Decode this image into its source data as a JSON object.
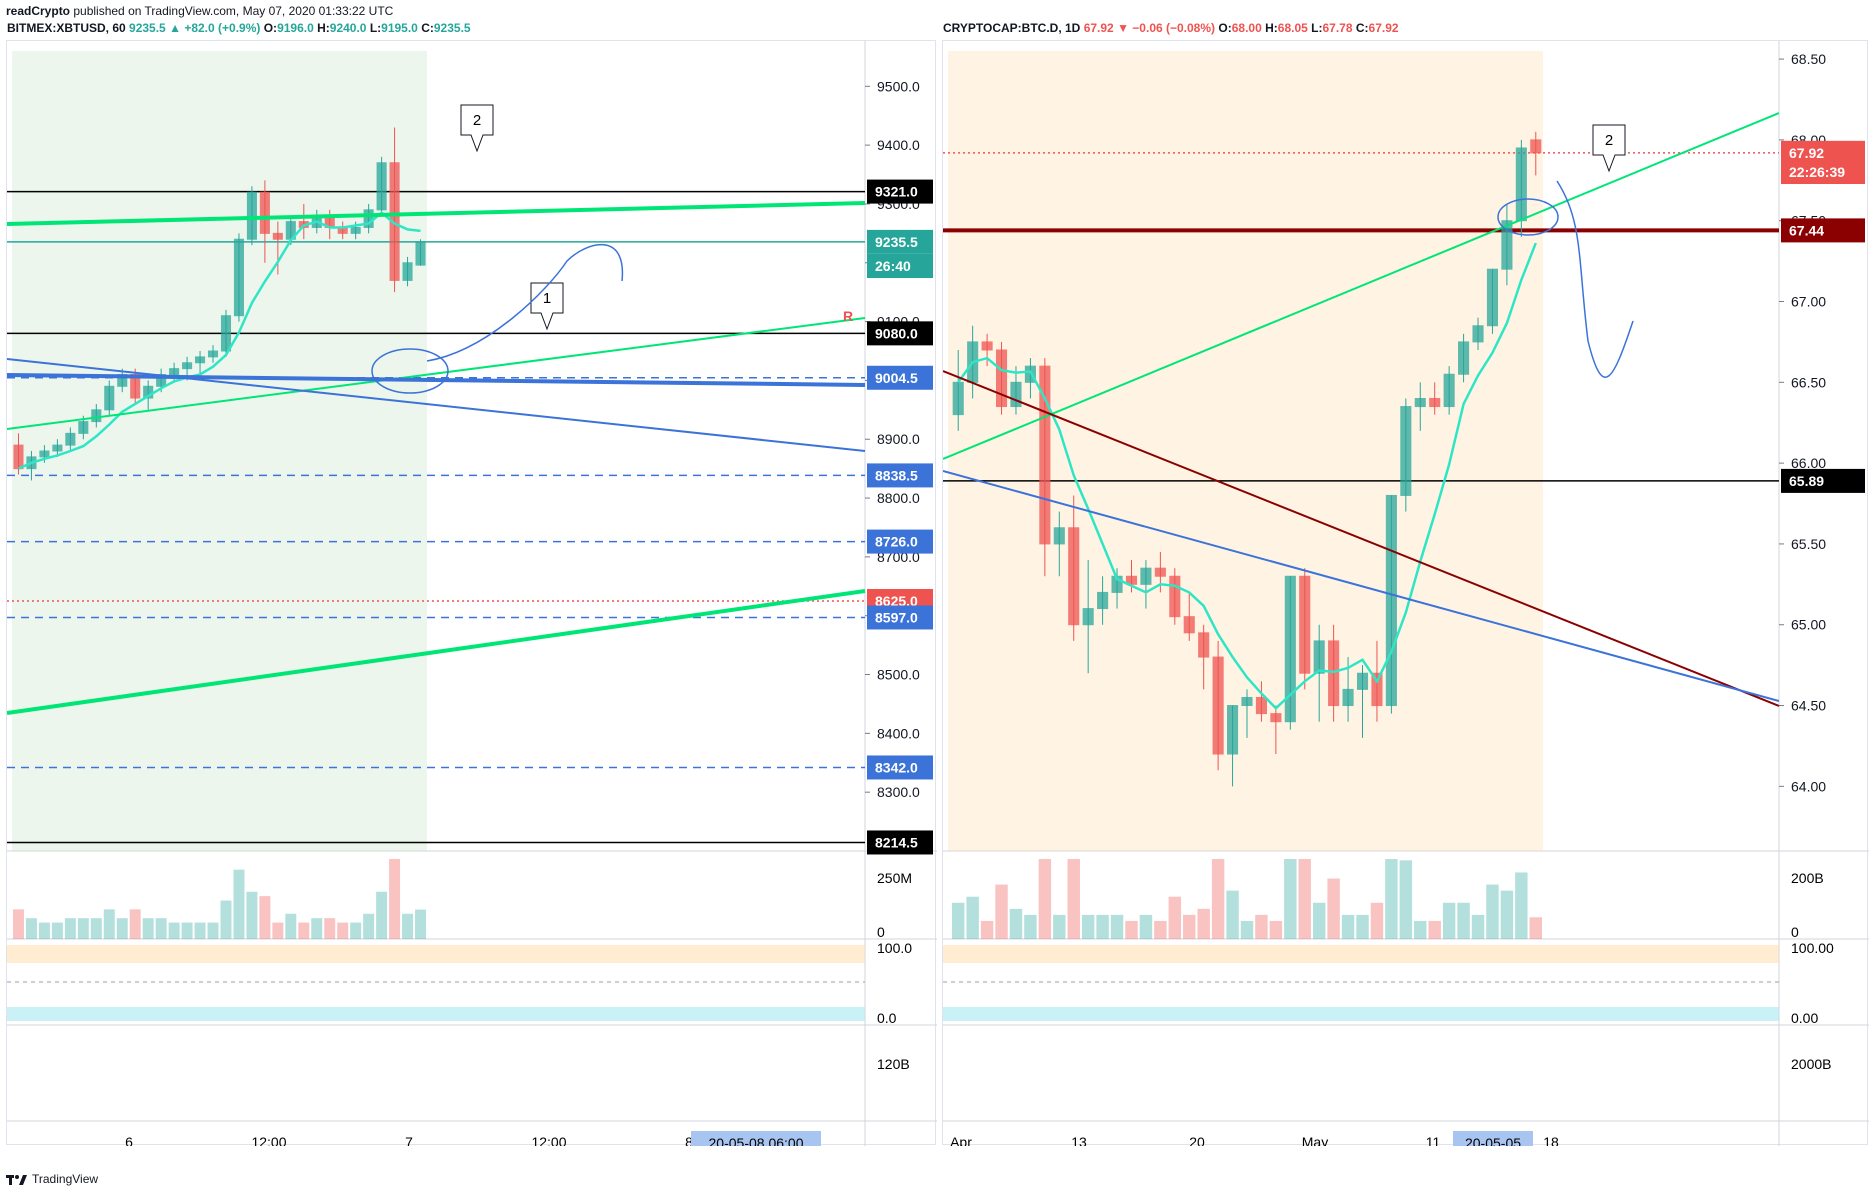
{
  "header": {
    "user": "readCrypto",
    "published": "published on TradingView.com, May 07, 2020 01:33:22 UTC"
  },
  "footer": {
    "brand": "TradingView"
  },
  "colors": {
    "up": "#26a69a",
    "down": "#ef5350",
    "green_line": "#00e676",
    "blue_line": "#3b73d9",
    "dark_red": "#8b0000"
  },
  "charts": {
    "left": {
      "legend": {
        "symbol": "BITMEX:XBTUSD, 60",
        "last": "9235.5",
        "change": "+82.0 (+0.9%)",
        "o_label": "O:",
        "o": "9196.0",
        "h_label": "H:",
        "h": "9240.0",
        "l_label": "L:",
        "l": "9195.0",
        "c_label": "C:",
        "c": "9235.5"
      },
      "y_ticks": [
        "9500.0",
        "9400.0",
        "9300.0",
        "9200.0",
        "9100.0",
        "9000.0",
        "8900.0",
        "8800.0",
        "8700.0",
        "8600.0",
        "8500.0",
        "8400.0",
        "8300.0"
      ],
      "price_badges": [
        {
          "text": "9321.0",
          "style": "black"
        },
        {
          "text": "9235.5",
          "style": "teal"
        },
        {
          "text": "26:40",
          "style": "teal"
        },
        {
          "text": "9080.0",
          "style": "black"
        },
        {
          "text": "9004.5",
          "style": "blue"
        },
        {
          "text": "8838.5",
          "style": "blue"
        },
        {
          "text": "8726.0",
          "style": "blue"
        },
        {
          "text": "8625.0",
          "style": "red"
        },
        {
          "text": "8597.0",
          "style": "blue"
        },
        {
          "text": "8342.0",
          "style": "blue"
        },
        {
          "text": "8214.5",
          "style": "black"
        }
      ],
      "x_ticks": [
        "6",
        "12:00",
        "7",
        "12:00",
        "8"
      ],
      "x_badge": "20-05-08  06:00",
      "x_tail": ":00",
      "volume_ticks": [
        "250M",
        "0"
      ],
      "osc_ticks": [
        "100.0",
        "0.0"
      ],
      "obv_ticks": [
        "120B"
      ],
      "annotations": [
        "1",
        "2"
      ],
      "marker_r": "R"
    },
    "right": {
      "legend": {
        "symbol": "CRYPTOCAP:BTC.D, 1D",
        "last": "67.92",
        "change": "−0.06 (−0.08%)",
        "o_label": "O:",
        "o": "68.00",
        "h_label": "H:",
        "h": "68.05",
        "l_label": "L:",
        "l": "67.78",
        "c_label": "C:",
        "c": "67.92"
      },
      "y_ticks": [
        "68.50",
        "68.00",
        "67.50",
        "67.00",
        "66.50",
        "66.00",
        "65.50",
        "65.00",
        "64.50",
        "64.00"
      ],
      "price_badges": [
        {
          "text": "67.92",
          "style": "red"
        },
        {
          "text": "22:26:39",
          "style": "red"
        },
        {
          "text": "67.44",
          "style": "darkred"
        },
        {
          "text": "65.89",
          "style": "black"
        }
      ],
      "x_ticks": [
        "Apr",
        "13",
        "20",
        "May",
        "11",
        "18"
      ],
      "x_badge": "20-05-05",
      "volume_ticks": [
        "200B",
        "0"
      ],
      "osc_ticks": [
        "100.00",
        "0.00"
      ],
      "obv_ticks": [
        "2000B"
      ],
      "annotations": [
        "2"
      ]
    }
  },
  "chart_data": [
    {
      "type": "candlestick",
      "title": "BITMEX:XBTUSD, 60",
      "ylim": [
        8200,
        9560
      ],
      "ohlc": [
        [
          8890,
          8910,
          8840,
          8850
        ],
        [
          8850,
          8880,
          8830,
          8870
        ],
        [
          8870,
          8890,
          8860,
          8880
        ],
        [
          8880,
          8900,
          8870,
          8890
        ],
        [
          8890,
          8920,
          8880,
          8910
        ],
        [
          8910,
          8940,
          8900,
          8930
        ],
        [
          8930,
          8960,
          8920,
          8950
        ],
        [
          8950,
          9000,
          8940,
          8990
        ],
        [
          8990,
          9020,
          8980,
          9010
        ],
        [
          9010,
          9020,
          8960,
          8970
        ],
        [
          8970,
          9000,
          8950,
          8990
        ],
        [
          8990,
          9020,
          8980,
          9010
        ],
        [
          9010,
          9030,
          9000,
          9020
        ],
        [
          9020,
          9040,
          9000,
          9030
        ],
        [
          9030,
          9050,
          9010,
          9040
        ],
        [
          9040,
          9060,
          9030,
          9050
        ],
        [
          9050,
          9120,
          9040,
          9110
        ],
        [
          9110,
          9250,
          9100,
          9240
        ],
        [
          9240,
          9330,
          9230,
          9320
        ],
        [
          9320,
          9340,
          9200,
          9250
        ],
        [
          9250,
          9270,
          9180,
          9240
        ],
        [
          9240,
          9280,
          9230,
          9270
        ],
        [
          9270,
          9300,
          9240,
          9260
        ],
        [
          9260,
          9290,
          9250,
          9280
        ],
        [
          9280,
          9290,
          9240,
          9260
        ],
        [
          9260,
          9270,
          9240,
          9250
        ],
        [
          9250,
          9270,
          9240,
          9260
        ],
        [
          9260,
          9300,
          9250,
          9290
        ],
        [
          9290,
          9380,
          9280,
          9370
        ],
        [
          9370,
          9430,
          9150,
          9170
        ],
        [
          9170,
          9210,
          9160,
          9200
        ],
        [
          9196,
          9240,
          9195,
          9235.5
        ]
      ]
    },
    {
      "type": "candlestick",
      "title": "CRYPTOCAP:BTC.D, 1D",
      "ylim": [
        63.6,
        68.55
      ],
      "ohlc": [
        [
          66.3,
          66.7,
          66.2,
          66.5
        ],
        [
          66.5,
          66.85,
          66.4,
          66.75
        ],
        [
          66.75,
          66.8,
          66.6,
          66.7
        ],
        [
          66.7,
          66.75,
          66.3,
          66.35
        ],
        [
          66.35,
          66.6,
          66.3,
          66.5
        ],
        [
          66.5,
          66.65,
          66.4,
          66.6
        ],
        [
          66.6,
          66.65,
          65.3,
          65.5
        ],
        [
          65.5,
          65.7,
          65.3,
          65.6
        ],
        [
          65.6,
          65.8,
          64.9,
          65.0
        ],
        [
          65.0,
          65.4,
          64.7,
          65.1
        ],
        [
          65.1,
          65.3,
          65.0,
          65.2
        ],
        [
          65.2,
          65.35,
          65.1,
          65.3
        ],
        [
          65.3,
          65.4,
          65.2,
          65.25
        ],
        [
          65.25,
          65.4,
          65.1,
          65.35
        ],
        [
          65.35,
          65.45,
          65.2,
          65.3
        ],
        [
          65.3,
          65.35,
          65.0,
          65.05
        ],
        [
          65.05,
          65.2,
          64.9,
          64.95
        ],
        [
          64.95,
          65.0,
          64.6,
          64.8
        ],
        [
          64.8,
          64.9,
          64.1,
          64.2
        ],
        [
          64.2,
          64.5,
          64.0,
          64.5
        ],
        [
          64.5,
          64.6,
          64.3,
          64.55
        ],
        [
          64.55,
          64.65,
          64.4,
          64.45
        ],
        [
          64.45,
          64.5,
          64.2,
          64.4
        ],
        [
          64.4,
          65.3,
          64.35,
          65.3
        ],
        [
          65.3,
          65.35,
          64.6,
          64.7
        ],
        [
          64.7,
          65.0,
          64.4,
          64.9
        ],
        [
          64.9,
          65.0,
          64.4,
          64.5
        ],
        [
          64.5,
          64.8,
          64.4,
          64.6
        ],
        [
          64.6,
          64.75,
          64.3,
          64.7
        ],
        [
          64.7,
          64.9,
          64.4,
          64.5
        ],
        [
          64.5,
          65.8,
          64.45,
          65.8
        ],
        [
          65.8,
          66.4,
          65.7,
          66.35
        ],
        [
          66.35,
          66.5,
          66.2,
          66.4
        ],
        [
          66.4,
          66.5,
          66.3,
          66.35
        ],
        [
          66.35,
          66.6,
          66.3,
          66.55
        ],
        [
          66.55,
          66.8,
          66.5,
          66.75
        ],
        [
          66.75,
          66.9,
          66.7,
          66.85
        ],
        [
          66.85,
          67.2,
          66.8,
          67.2
        ],
        [
          67.2,
          67.6,
          67.1,
          67.5
        ],
        [
          67.5,
          68.0,
          67.4,
          67.95
        ],
        [
          68.0,
          68.05,
          67.78,
          67.92
        ]
      ]
    }
  ]
}
